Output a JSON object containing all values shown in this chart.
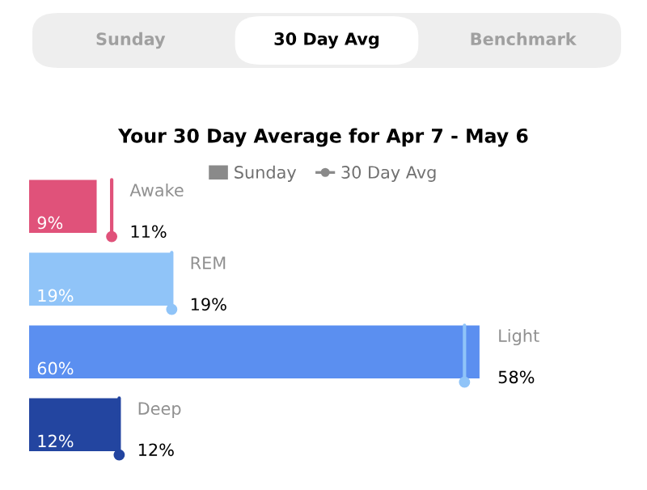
{
  "chart_data": {
    "type": "bar",
    "orientation": "horizontal",
    "title": "Your 30 Day Average for Apr 7 - May 6",
    "annotations": [
      "Sunday",
      "30 Day Avg",
      "Benchmark"
    ],
    "categories": [
      "Awake",
      "REM",
      "Light",
      "Deep"
    ],
    "series": [
      {
        "name": "Sunday",
        "color": "#8a8a8a",
        "colors": [
          "#e0527a",
          "#90c4f8",
          "#5b8ff0",
          "#2345a0"
        ],
        "values": [
          9,
          19,
          60,
          12
        ],
        "value_labels": [
          "9%",
          "19%",
          "60%",
          "12%"
        ]
      },
      {
        "name": "30 Day Avg",
        "type": "scatter",
        "color": "#8a8a8a",
        "colors": [
          "#e0527a",
          "#90c4f8",
          "#90c4f8",
          "#2345a0"
        ],
        "values": [
          11,
          19,
          58,
          12
        ],
        "value_labels": [
          "11%",
          "19%",
          "58%",
          "12%"
        ]
      }
    ],
    "legend": "top"
  }
}
